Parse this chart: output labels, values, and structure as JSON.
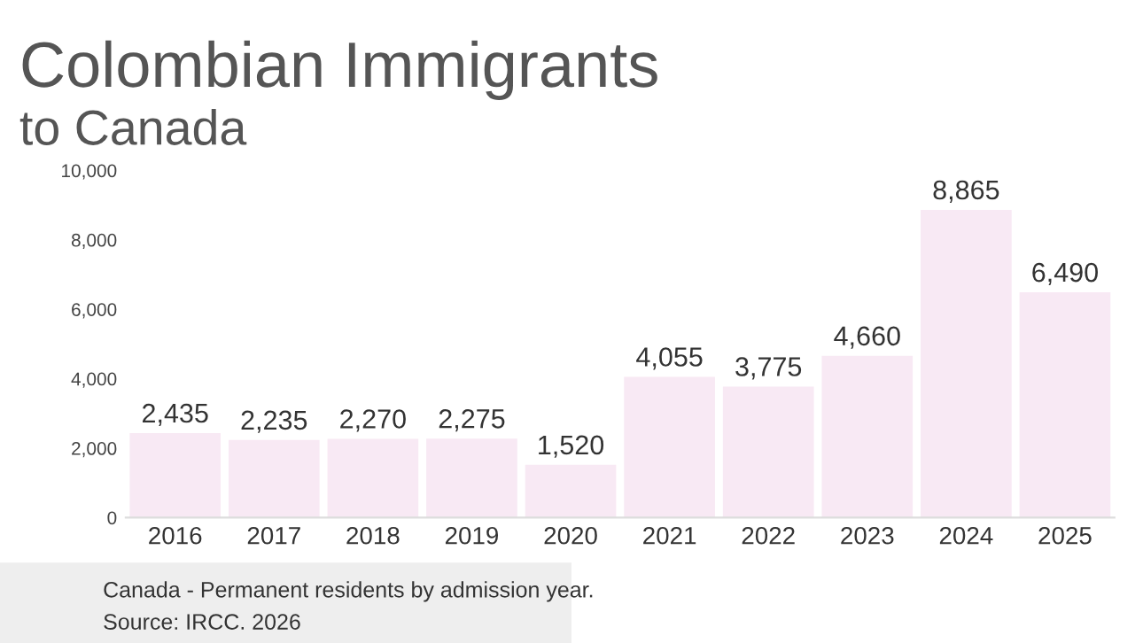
{
  "chart_data": {
    "type": "bar",
    "title": "Colombian Immigrants",
    "subtitle": "to Canada",
    "categories": [
      "2016",
      "2017",
      "2018",
      "2019",
      "2020",
      "2021",
      "2022",
      "2023",
      "2024",
      "2025"
    ],
    "values": [
      2435,
      2235,
      2270,
      2275,
      1520,
      4055,
      3775,
      4660,
      8865,
      6490
    ],
    "value_labels": [
      "2,435",
      "2,235",
      "2,270",
      "2,275",
      "1,520",
      "4,055",
      "3,775",
      "4,660",
      "8,865",
      "6,490"
    ],
    "color": "#f8e9f4",
    "ylim": [
      0,
      10000
    ],
    "yticks": [
      {
        "value": 0,
        "label": "0"
      },
      {
        "value": 2000,
        "label": "2,000"
      },
      {
        "value": 4000,
        "label": "4,000"
      },
      {
        "value": 6000,
        "label": "6,000"
      },
      {
        "value": 8000,
        "label": "8,000"
      },
      {
        "value": 10000,
        "label": "10,000"
      }
    ],
    "grid": false,
    "annotations": [
      "Canada - Permanent residents by admission year.",
      "Source: IRCC. 2026"
    ]
  }
}
